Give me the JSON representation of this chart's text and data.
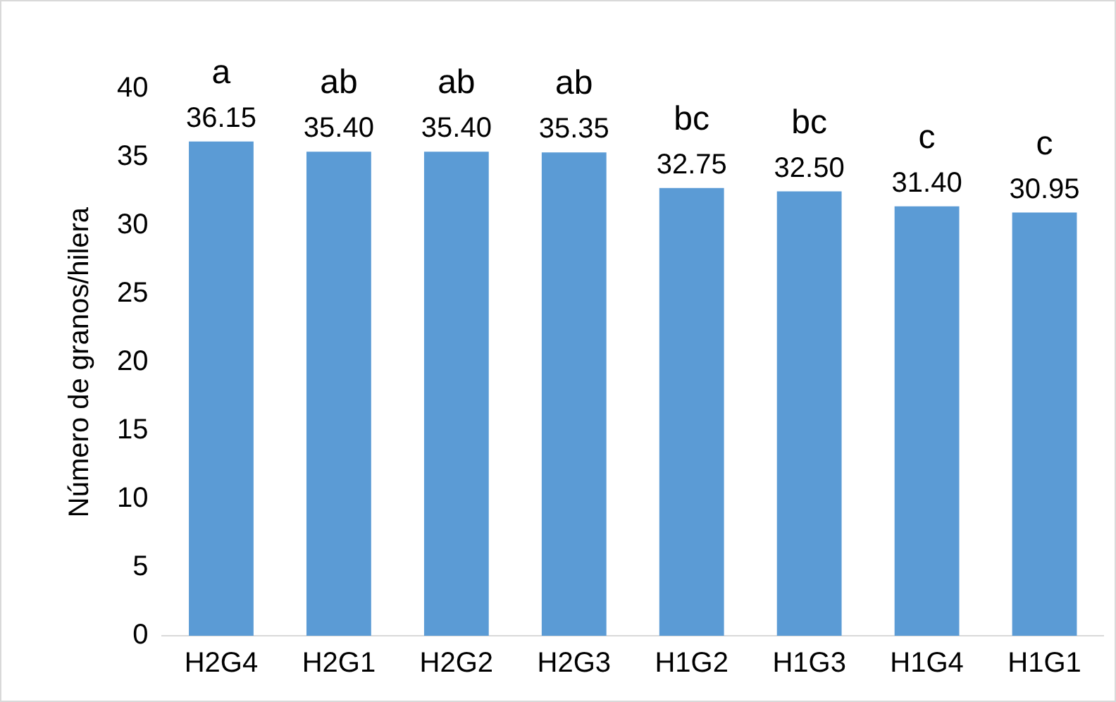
{
  "chart_data": {
    "type": "bar",
    "ylabel": "Número de granos/hilera",
    "categories": [
      "H2G4",
      "H2G1",
      "H2G2",
      "H2G3",
      "H1G2",
      "H1G3",
      "H1G4",
      "H1G1"
    ],
    "values": [
      36.15,
      35.4,
      35.4,
      35.35,
      32.75,
      32.5,
      31.4,
      30.95
    ],
    "value_labels": [
      "36.15",
      "35.40",
      "35.40",
      "35.35",
      "32.75",
      "32.50",
      "31.40",
      "30.95"
    ],
    "color": "#5b9bd5",
    "ylim": [
      0,
      40
    ],
    "yticks": [
      0,
      5,
      10,
      15,
      20,
      25,
      30,
      35,
      40
    ],
    "grid": false,
    "legend": false,
    "annotations": [
      {
        "text": "a",
        "x": "H2G4",
        "y": 36.15
      },
      {
        "text": "ab",
        "x": "H2G1",
        "y": 35.4
      },
      {
        "text": "ab",
        "x": "H2G2",
        "y": 35.4
      },
      {
        "text": "ab",
        "x": "H2G3",
        "y": 35.35
      },
      {
        "text": "bc",
        "x": "H1G2",
        "y": 32.75
      },
      {
        "text": "bc",
        "x": "H1G3",
        "y": 32.5
      },
      {
        "text": "c",
        "x": "H1G4",
        "y": 31.4
      },
      {
        "text": "c",
        "x": "H1G1",
        "y": 30.95
      }
    ]
  }
}
